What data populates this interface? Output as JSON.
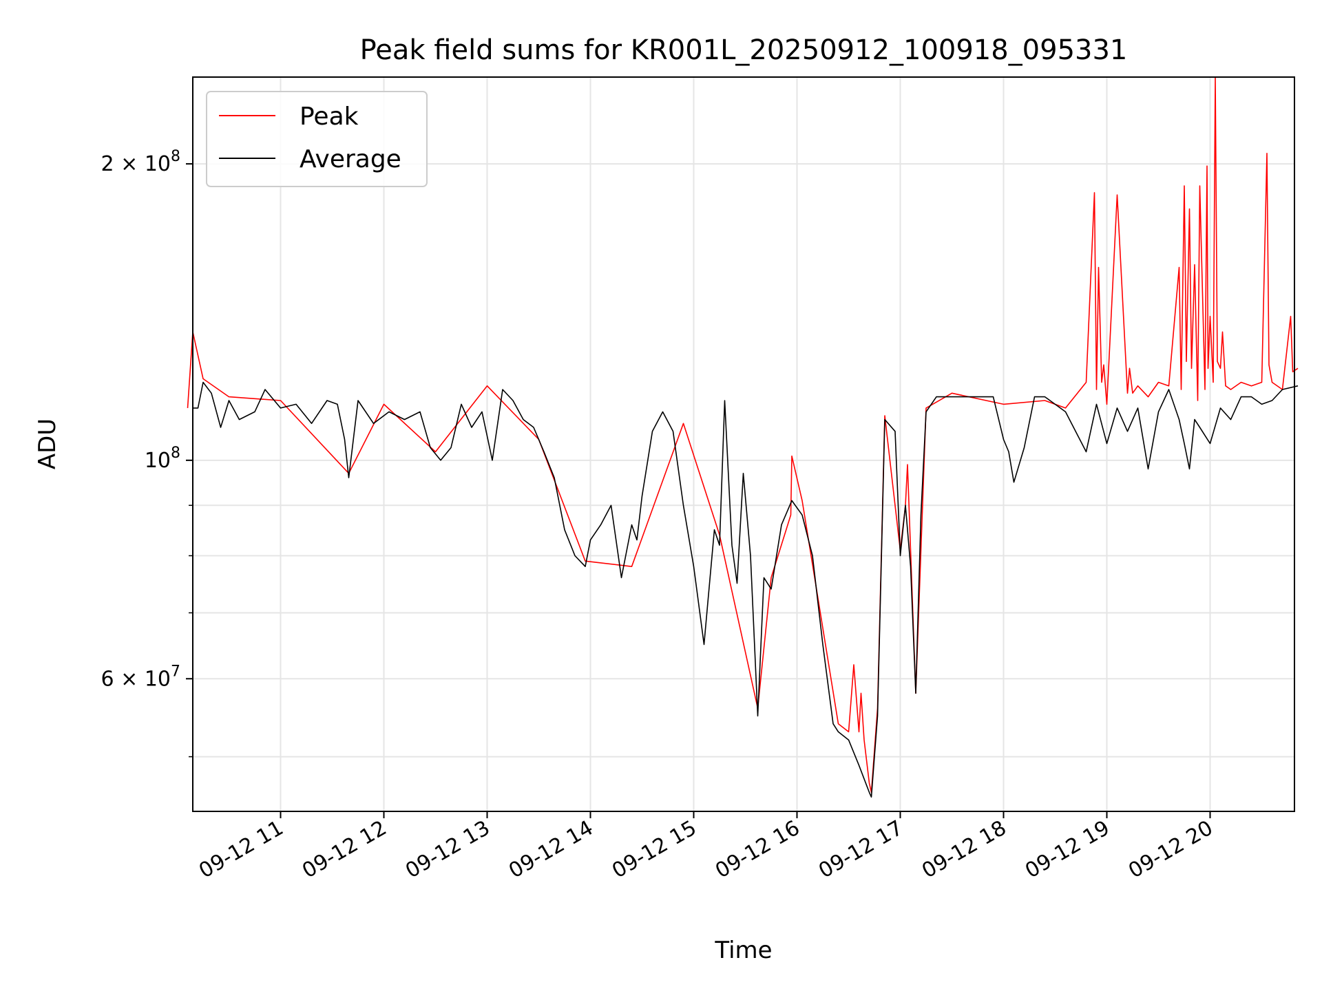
{
  "chart_data": {
    "type": "line",
    "title": "Peak field sums for KR001L_20250912_100918_095331",
    "xlabel": "Time",
    "ylabel": "ADU",
    "y_scale": "log",
    "ylim": [
      44000000,
      245000000
    ],
    "x_range_hours": [
      "09-12 10:09",
      "09-12 20:49"
    ],
    "grid": true,
    "legend_position": "upper left",
    "x_ticks": [
      "09-12 11",
      "09-12 12",
      "09-12 13",
      "09-12 14",
      "09-12 15",
      "09-12 16",
      "09-12 17",
      "09-12 18",
      "09-12 19",
      "09-12 20"
    ],
    "y_major_ticks": [
      {
        "value": 100000000,
        "label": "10^8"
      },
      {
        "value": 200000000,
        "label": "2×10^8"
      },
      {
        "value": 60000000,
        "label": "6×10^7"
      }
    ],
    "colors": {
      "Peak": "#ff0000",
      "Average": "#000000",
      "grid": "#e5e5e5"
    },
    "series": [
      {
        "name": "Average",
        "x_hours": [
          10.15,
          10.2,
          10.25,
          10.33,
          10.42,
          10.5,
          10.6,
          10.75,
          10.85,
          11.0,
          11.15,
          11.3,
          11.45,
          11.55,
          11.62,
          11.66,
          11.75,
          11.9,
          12.05,
          12.2,
          12.35,
          12.45,
          12.55,
          12.65,
          12.75,
          12.85,
          12.95,
          13.05,
          13.15,
          13.25,
          13.35,
          13.45,
          13.55,
          13.65,
          13.75,
          13.85,
          13.95,
          14.0,
          14.1,
          14.2,
          14.3,
          14.4,
          14.45,
          14.5,
          14.6,
          14.7,
          14.8,
          14.9,
          15.0,
          15.1,
          15.2,
          15.25,
          15.3,
          15.37,
          15.42,
          15.48,
          15.55,
          15.62,
          15.68,
          15.75,
          15.85,
          15.95,
          16.05,
          16.15,
          16.25,
          16.35,
          16.4,
          16.5,
          16.6,
          16.7,
          16.72,
          16.78,
          16.85,
          16.95,
          17.0,
          17.05,
          17.1,
          17.15,
          17.2,
          17.25,
          17.35,
          17.5,
          17.7,
          17.9,
          18.0,
          18.05,
          18.1,
          18.2,
          18.3,
          18.4,
          18.6,
          18.8,
          18.9,
          19.0,
          19.1,
          19.2,
          19.3,
          19.4,
          19.5,
          19.6,
          19.7,
          19.75,
          19.8,
          19.85,
          19.9,
          20.0,
          20.1,
          20.2,
          20.3,
          20.4,
          20.5,
          20.6,
          20.7,
          20.85
        ],
        "values": [
          113000000,
          113000000,
          120000000,
          117000000,
          108000000,
          115000000,
          110000000,
          112000000,
          118000000,
          113000000,
          114000000,
          109000000,
          115000000,
          114000000,
          105000000,
          96000000,
          115000000,
          109000000,
          112000000,
          110000000,
          112000000,
          103000000,
          100000000,
          103000000,
          114000000,
          108000000,
          112000000,
          100000000,
          118000000,
          115000000,
          110000000,
          108000000,
          102000000,
          96000000,
          85000000,
          80000000,
          78000000,
          83000000,
          86000000,
          90000000,
          76000000,
          86000000,
          83000000,
          92000000,
          107000000,
          112000000,
          107000000,
          90000000,
          78000000,
          65000000,
          85000000,
          82000000,
          115000000,
          82000000,
          75000000,
          97000000,
          80000000,
          55000000,
          76000000,
          74000000,
          86000000,
          91000000,
          88000000,
          80000000,
          65000000,
          54000000,
          53000000,
          52000000,
          49000000,
          46000000,
          45500000,
          55000000,
          110000000,
          107000000,
          80000000,
          90000000,
          78000000,
          58000000,
          88000000,
          112000000,
          116000000,
          116000000,
          116000000,
          116000000,
          105000000,
          102000000,
          95000000,
          103000000,
          116000000,
          116000000,
          112000000,
          102000000,
          114000000,
          104000000,
          113000000,
          107000000,
          113000000,
          98000000,
          112000000,
          118000000,
          110000000,
          104000000,
          98000000,
          110000000,
          108000000,
          104000000,
          113000000,
          110000000,
          116000000,
          116000000,
          114000000,
          115000000,
          118000000,
          119000000
        ]
      },
      {
        "name": "Peak",
        "x_hours": [
          10.1,
          10.15,
          10.25,
          10.5,
          11.0,
          11.66,
          12.0,
          12.5,
          13.0,
          13.5,
          13.95,
          14.4,
          14.9,
          15.25,
          15.62,
          15.75,
          15.94,
          15.95,
          16.05,
          16.4,
          16.5,
          16.55,
          16.6,
          16.62,
          16.65,
          16.7,
          16.72,
          16.78,
          16.85,
          17.0,
          17.05,
          17.07,
          17.15,
          17.25,
          17.5,
          18.0,
          18.4,
          18.6,
          18.8,
          18.88,
          18.9,
          18.92,
          18.95,
          18.97,
          19.0,
          19.1,
          19.2,
          19.22,
          19.25,
          19.3,
          19.4,
          19.5,
          19.6,
          19.7,
          19.72,
          19.75,
          19.77,
          19.8,
          19.82,
          19.85,
          19.88,
          19.9,
          19.95,
          19.97,
          19.98,
          20.0,
          20.03,
          20.05,
          20.07,
          20.1,
          20.12,
          20.15,
          20.2,
          20.3,
          20.4,
          20.5,
          20.55,
          20.57,
          20.6,
          20.7,
          20.78,
          20.8,
          20.85
        ],
        "values": [
          113000000,
          135000000,
          121000000,
          116000000,
          115000000,
          97000000,
          114000000,
          102000000,
          119000000,
          105000000,
          79000000,
          78000000,
          109000000,
          84000000,
          56000000,
          76000000,
          88000000,
          101000000,
          91000000,
          54000000,
          53000000,
          62000000,
          53000000,
          58000000,
          52000000,
          47000000,
          46000000,
          56000000,
          111000000,
          81000000,
          90000000,
          99000000,
          58000000,
          113000000,
          117000000,
          114000000,
          115000000,
          113000000,
          120000000,
          187000000,
          118000000,
          157000000,
          120000000,
          125000000,
          114000000,
          186000000,
          117000000,
          124000000,
          117000000,
          119000000,
          116000000,
          120000000,
          119000000,
          157000000,
          118000000,
          190000000,
          126000000,
          180000000,
          124000000,
          158000000,
          115000000,
          190000000,
          118000000,
          199000000,
          124000000,
          140000000,
          120000000,
          245000000,
          126000000,
          124000000,
          135000000,
          119000000,
          118000000,
          120000000,
          119000000,
          120000000,
          205000000,
          125000000,
          120000000,
          118000000,
          140000000,
          123000000,
          124000000
        ]
      }
    ]
  }
}
